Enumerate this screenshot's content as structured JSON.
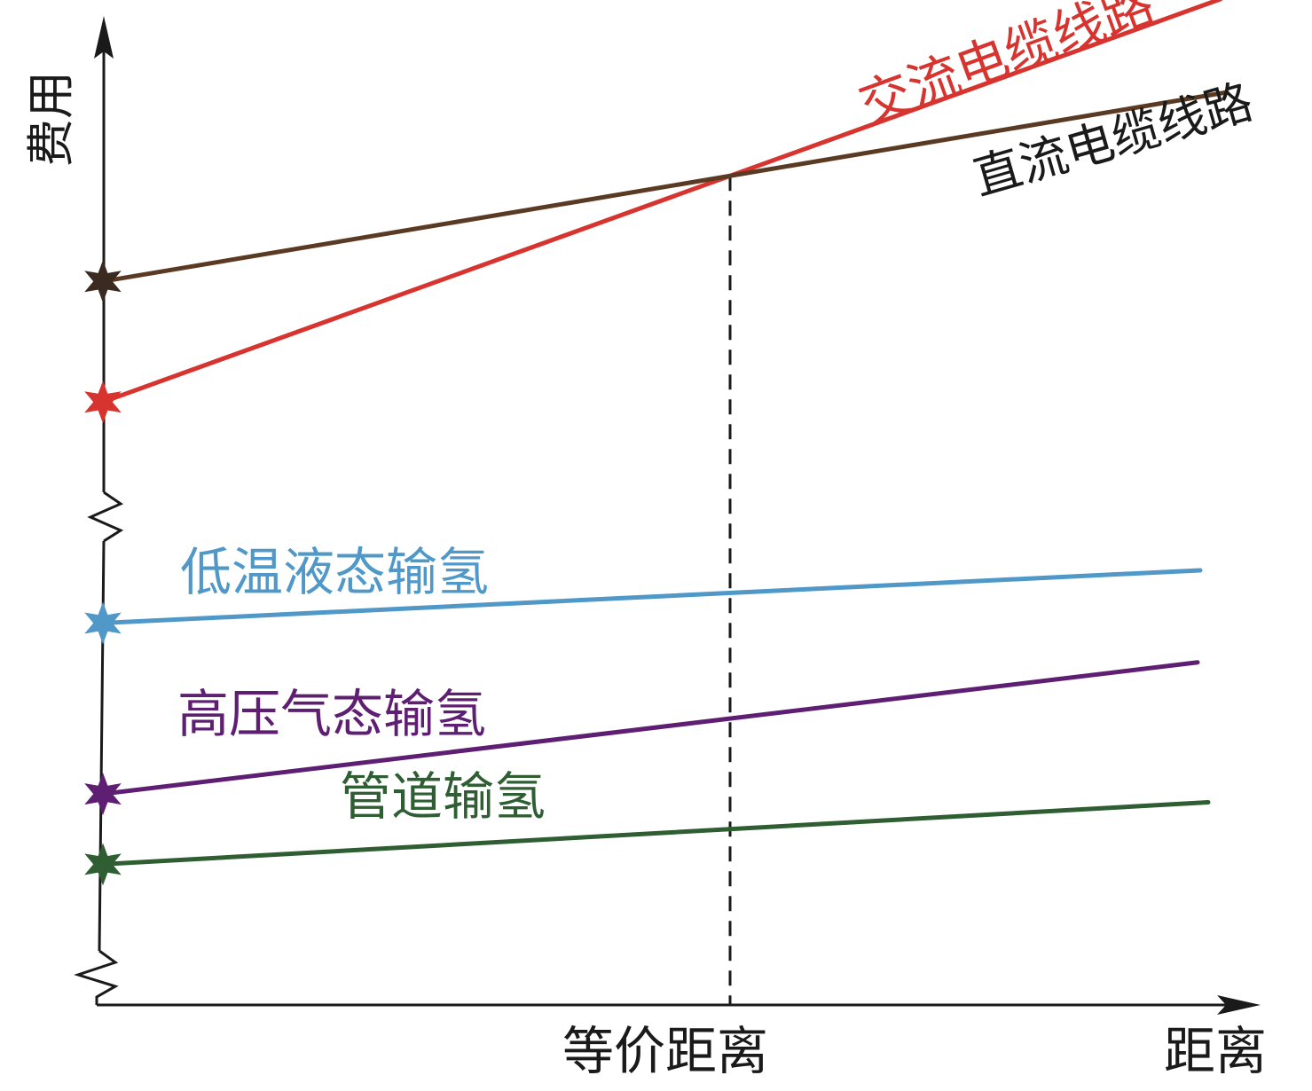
{
  "chart_data": {
    "type": "line",
    "title": "",
    "xlabel": "距离",
    "ylabel": "费用",
    "x_tick_label": "等价距离",
    "x": [
      0,
      1,
      2
    ],
    "xlim": [
      0,
      2.0
    ],
    "ylim": [
      0,
      100
    ],
    "axis_breaks": "yes",
    "grid": false,
    "legend": "none",
    "reference_line": {
      "x": 1.0,
      "style": "dashed",
      "color": "#1a1a1a"
    },
    "series": [
      {
        "name": "交流电缆线路",
        "values": [
          60,
          82.5,
          105
        ],
        "color": "#d7332f",
        "marker": "star"
      },
      {
        "name": "直流电缆线路",
        "values": [
          72,
          82.5,
          93
        ],
        "color": "#5a3a22",
        "marker": "star"
      },
      {
        "name": "低温液态输氢",
        "values": [
          38,
          41,
          44
        ],
        "color": "#4f98c8",
        "marker": "star"
      },
      {
        "name": "高压气态输氢",
        "values": [
          21,
          28.5,
          36
        ],
        "color": "#5e1e72",
        "marker": "star"
      },
      {
        "name": "管道输氢",
        "values": [
          14,
          17.5,
          21
        ],
        "color": "#2f5e33",
        "marker": "star"
      }
    ]
  }
}
